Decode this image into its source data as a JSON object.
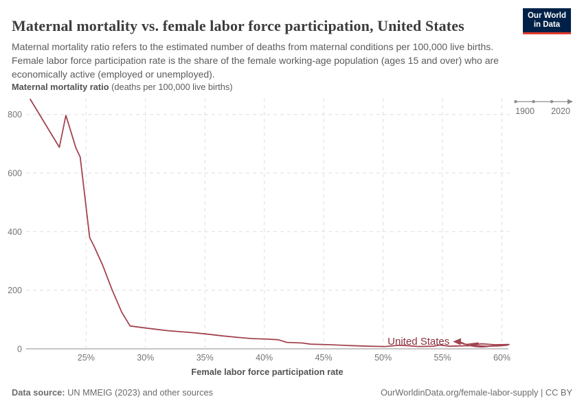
{
  "header": {
    "title": "Maternal mortality vs. female labor force participation, United States",
    "subtitle": "Maternal mortality ratio refers to the estimated number of deaths from maternal conditions per 100,000 live births. Female labor force participation rate is the share of the female working-age population (ages 15 and over) who are economically active (employed or unemployed)."
  },
  "logo": {
    "line1": "Our World",
    "line2": "in Data",
    "bg_color": "#002147",
    "accent_color": "#e23a2b"
  },
  "timeline": {
    "start_year": "1900",
    "end_year": "2020"
  },
  "axis": {
    "y_title_bold": "Maternal mortality ratio",
    "y_title_rest": " (deaths per 100,000 live births)",
    "x_title": "Female labor force participation rate"
  },
  "footer": {
    "source_label": "Data source:",
    "source_text": " UN MMEIG (2023) and other sources",
    "right_text": "OurWorldinData.org/female-labor-supply | CC BY"
  },
  "chart_data": {
    "type": "line",
    "title": "Maternal mortality vs. female labor force participation, United States",
    "xlabel": "Female labor force participation rate",
    "ylabel": "Maternal mortality ratio (deaths per 100,000 live births)",
    "xlim": [
      19.95,
      60.55
    ],
    "ylim": [
      0,
      858
    ],
    "grid": true,
    "grid_color": "#dedede",
    "axis_line_color": "#a3a3a3",
    "tick_label_color": "#737373",
    "x_ticks": [
      {
        "v": 25,
        "label": "25%"
      },
      {
        "v": 30,
        "label": "30%"
      },
      {
        "v": 35,
        "label": "35%"
      },
      {
        "v": 40,
        "label": "40%"
      },
      {
        "v": 45,
        "label": "45%"
      },
      {
        "v": 50,
        "label": "50%"
      },
      {
        "v": 55,
        "label": "55%"
      },
      {
        "v": 60,
        "label": "60%"
      }
    ],
    "y_ticks": [
      {
        "v": 0,
        "label": "0"
      },
      {
        "v": 200,
        "label": "200"
      },
      {
        "v": 400,
        "label": "400"
      },
      {
        "v": 600,
        "label": "600"
      },
      {
        "v": 800,
        "label": "800"
      }
    ],
    "series": [
      {
        "name": "United States",
        "color": "#a2434f",
        "label_color": "#8f2e3e",
        "points": [
          [
            20.3,
            852
          ],
          [
            22.75,
            688
          ],
          [
            23.3,
            797
          ],
          [
            24.15,
            685
          ],
          [
            24.5,
            655
          ],
          [
            25.3,
            380
          ],
          [
            25.7,
            348
          ],
          [
            26.4,
            285
          ],
          [
            27.2,
            200
          ],
          [
            28.0,
            125
          ],
          [
            28.7,
            78
          ],
          [
            30.0,
            71
          ],
          [
            31.9,
            62
          ],
          [
            34.0,
            55
          ],
          [
            35.0,
            51
          ],
          [
            36.5,
            44
          ],
          [
            37.8,
            39
          ],
          [
            39.0,
            35
          ],
          [
            40.3,
            33
          ],
          [
            41.2,
            31
          ],
          [
            41.9,
            22
          ],
          [
            43.2,
            20
          ],
          [
            43.9,
            16
          ],
          [
            45.5,
            14
          ],
          [
            47.3,
            11
          ],
          [
            48.8,
            9
          ],
          [
            50.2,
            8
          ],
          [
            51.3,
            12
          ],
          [
            52.0,
            11
          ],
          [
            53.0,
            8
          ],
          [
            54.2,
            9
          ],
          [
            54.8,
            13
          ],
          [
            55.6,
            9
          ],
          [
            56.6,
            10
          ],
          [
            57.6,
            11
          ],
          [
            58.7,
            9
          ],
          [
            59.7,
            10
          ],
          [
            60.4,
            12
          ],
          [
            60.6,
            15
          ],
          [
            59.4,
            14
          ],
          [
            58.3,
            17
          ],
          [
            57.4,
            13
          ],
          [
            58.0,
            20
          ],
          [
            57.0,
            15
          ],
          [
            56.4,
            21
          ]
        ]
      }
    ],
    "annotation": {
      "label": "United States",
      "x": 56.4,
      "y": 21
    }
  }
}
